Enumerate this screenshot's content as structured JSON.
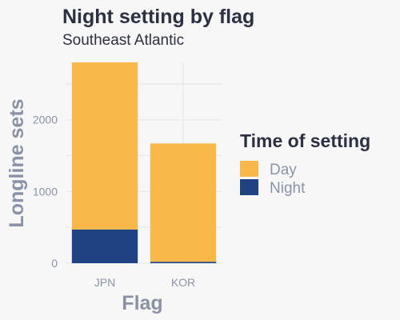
{
  "chart_data": {
    "type": "bar",
    "stacked": true,
    "title": "Night setting by flag",
    "subtitle": "Southeast Atlantic",
    "xlabel": "Flag",
    "ylabel": "Longline sets",
    "categories": [
      "JPN",
      "KOR"
    ],
    "series": [
      {
        "name": "Night",
        "values": [
          470,
          20
        ],
        "color": "#1f4283"
      },
      {
        "name": "Day",
        "values": [
          2330,
          1650
        ],
        "color": "#f8b94a"
      }
    ],
    "ylim": [
      0,
      2800
    ],
    "yticks": [
      0,
      1000,
      2000
    ],
    "grid": true,
    "legend": {
      "title": "Time of setting",
      "position": "right",
      "items": [
        {
          "label": "Day",
          "color": "#f8b94a"
        },
        {
          "label": "Night",
          "color": "#1f4283"
        }
      ]
    }
  }
}
